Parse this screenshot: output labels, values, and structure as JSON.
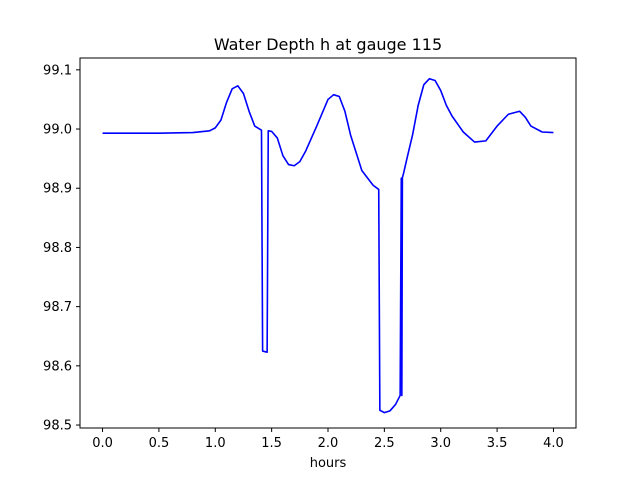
{
  "chart_data": {
    "type": "line",
    "title": "Water Depth h at gauge 115",
    "xlabel": "hours",
    "ylabel": "",
    "xlim": [
      -0.2,
      4.2
    ],
    "ylim": [
      98.495,
      99.12
    ],
    "xticks": [
      0.0,
      0.5,
      1.0,
      1.5,
      2.0,
      2.5,
      3.0,
      3.5,
      4.0
    ],
    "xtick_labels": [
      "0.0",
      "0.5",
      "1.0",
      "1.5",
      "2.0",
      "2.5",
      "3.0",
      "3.5",
      "4.0"
    ],
    "yticks": [
      98.5,
      98.6,
      98.7,
      98.8,
      98.9,
      99.0,
      99.1
    ],
    "ytick_labels": [
      "98.5",
      "98.6",
      "98.7",
      "98.8",
      "98.9",
      "99.0",
      "99.1"
    ],
    "grid": false,
    "series": [
      {
        "color": "#0000ff",
        "x": [
          0.0,
          0.5,
          0.8,
          0.95,
          1.0,
          1.05,
          1.1,
          1.15,
          1.2,
          1.25,
          1.3,
          1.35,
          1.41,
          1.42,
          1.46,
          1.47,
          1.5,
          1.55,
          1.6,
          1.65,
          1.7,
          1.75,
          1.8,
          1.9,
          2.0,
          2.05,
          2.1,
          2.15,
          2.2,
          2.3,
          2.4,
          2.45,
          2.46,
          2.5,
          2.55,
          2.6,
          2.64,
          2.65,
          2.655,
          2.66,
          2.67,
          2.7,
          2.75,
          2.8,
          2.85,
          2.9,
          2.95,
          3.0,
          3.05,
          3.1,
          3.2,
          3.3,
          3.4,
          3.5,
          3.6,
          3.7,
          3.75,
          3.8,
          3.9,
          4.0
        ],
        "y": [
          98.993,
          98.993,
          98.994,
          98.997,
          99.002,
          99.015,
          99.045,
          99.068,
          99.073,
          99.06,
          99.03,
          99.005,
          98.998,
          98.625,
          98.623,
          98.997,
          98.996,
          98.985,
          98.955,
          98.94,
          98.938,
          98.945,
          98.962,
          99.005,
          99.05,
          99.058,
          99.055,
          99.03,
          98.99,
          98.93,
          98.905,
          98.898,
          98.525,
          98.521,
          98.524,
          98.535,
          98.55,
          98.917,
          98.55,
          98.918,
          98.925,
          98.95,
          98.99,
          99.04,
          99.075,
          99.085,
          99.082,
          99.065,
          99.04,
          99.022,
          98.995,
          98.978,
          98.98,
          99.005,
          99.025,
          99.03,
          99.02,
          99.005,
          98.995,
          98.994
        ]
      }
    ]
  }
}
